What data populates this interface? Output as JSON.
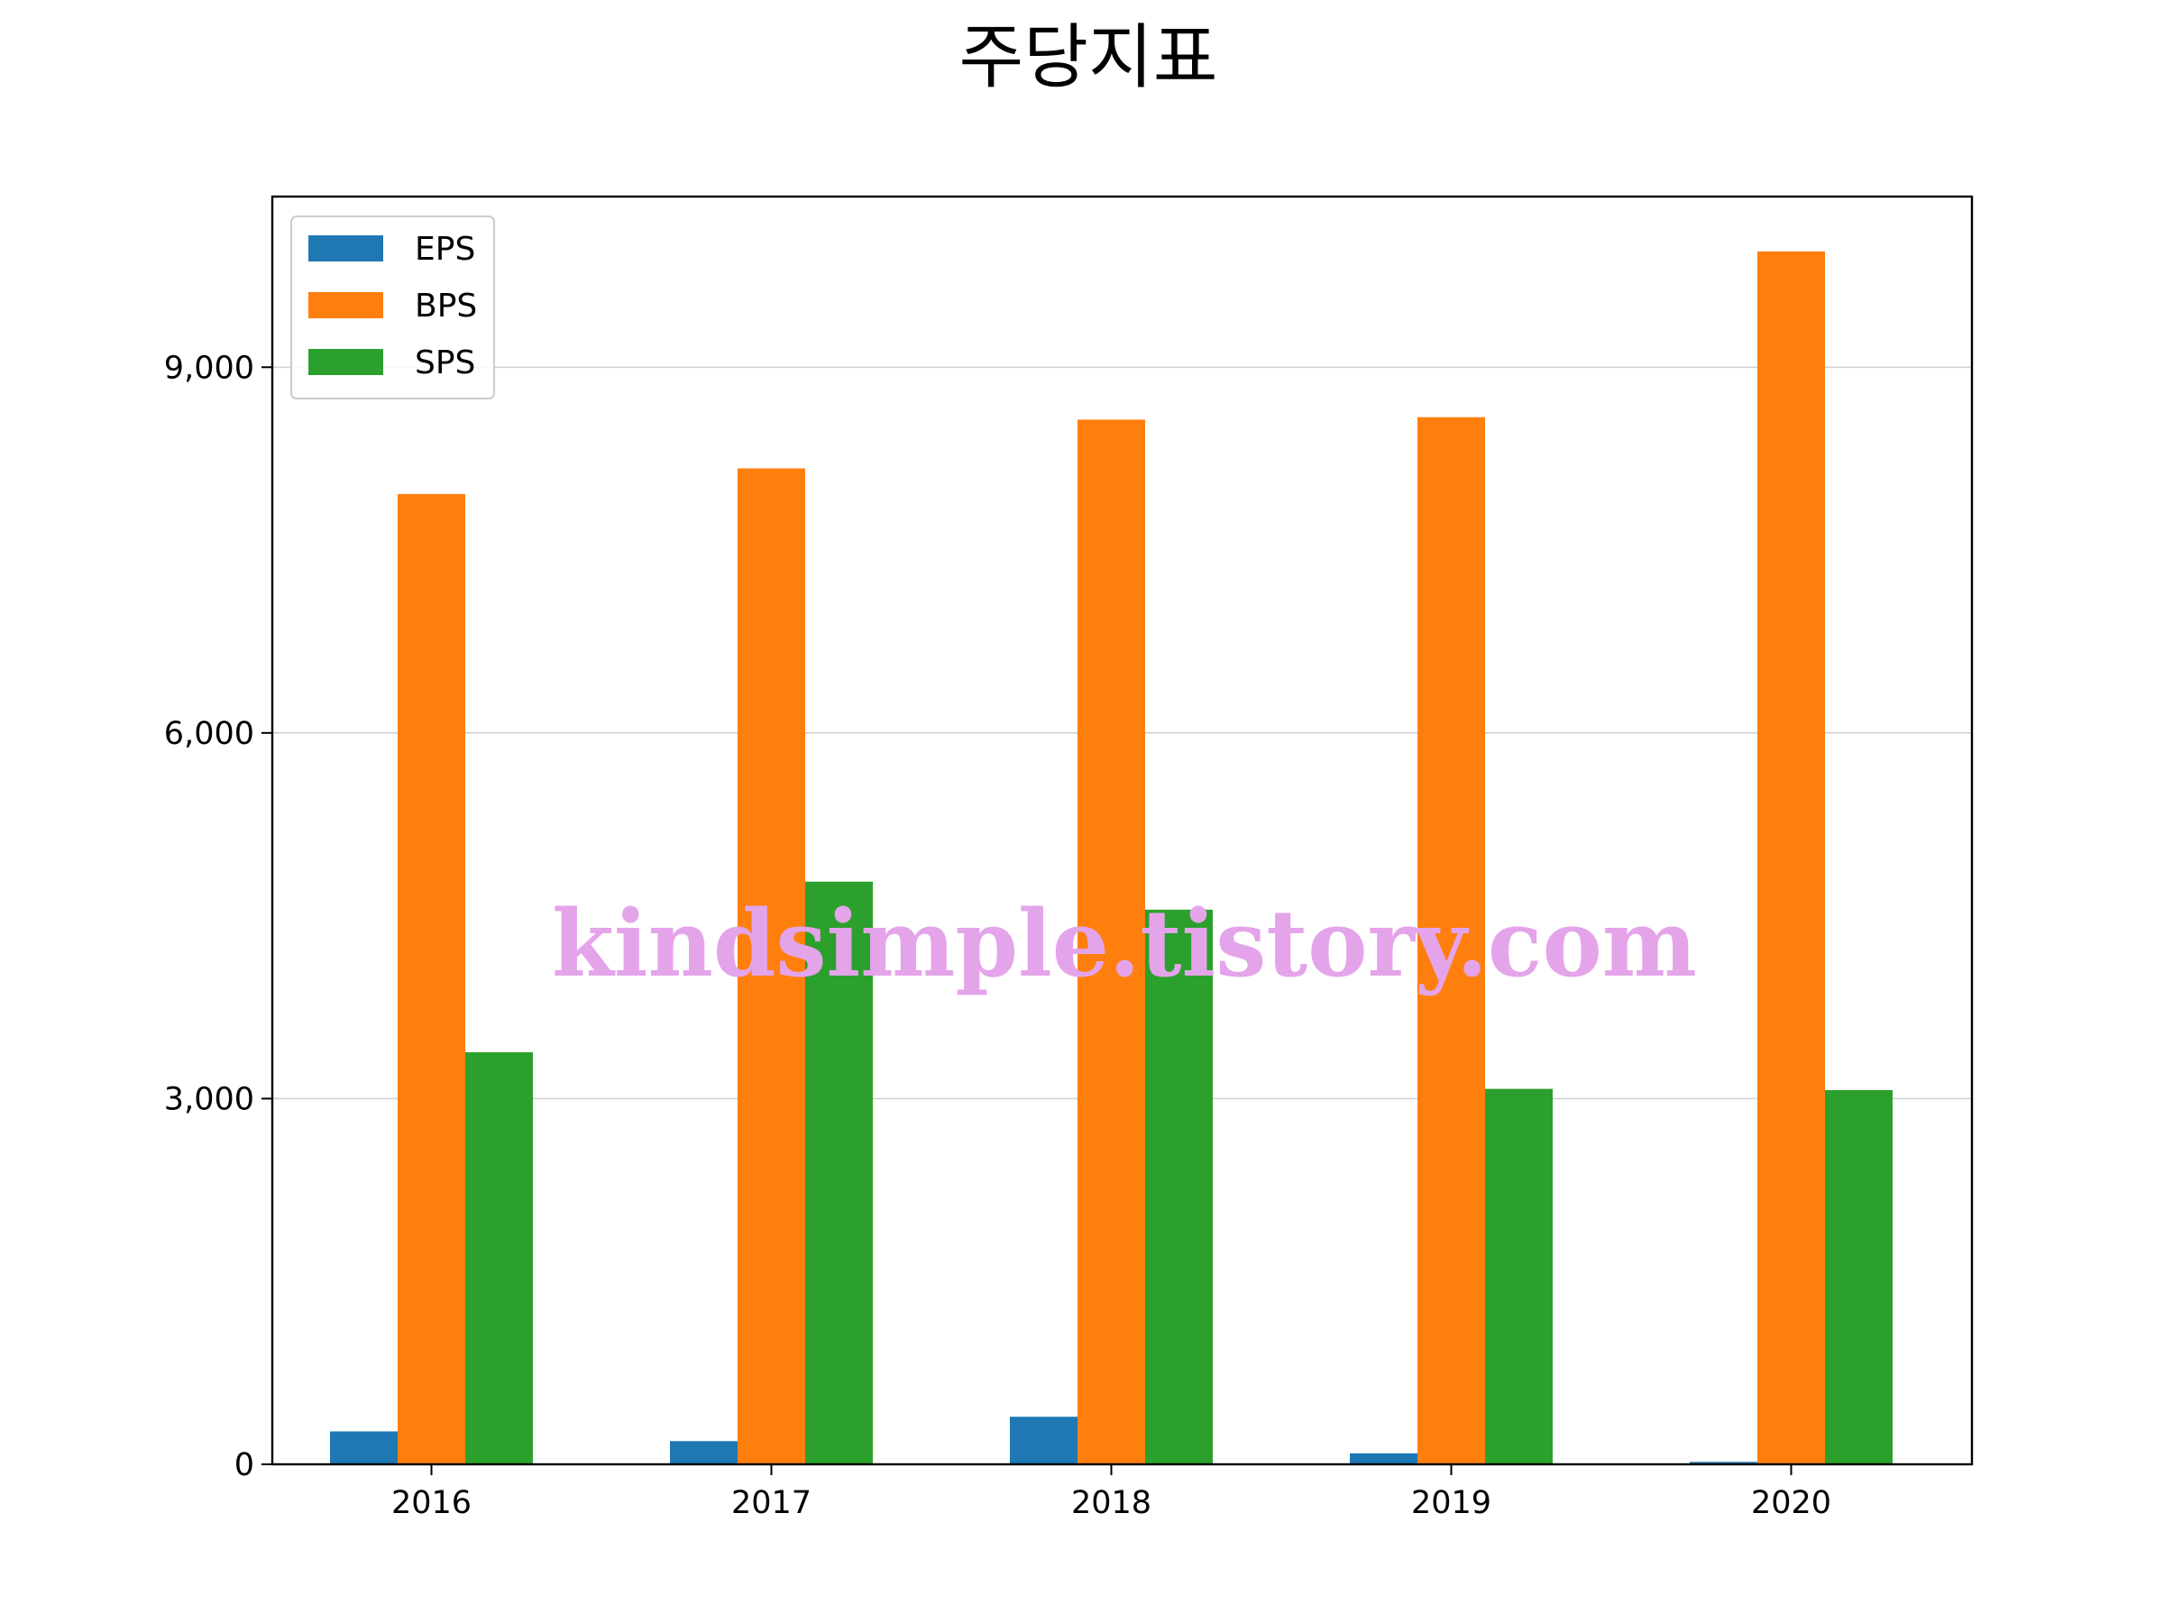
{
  "chart_data": {
    "type": "bar",
    "title": "주당지표",
    "xlabel": "",
    "ylabel": "",
    "categories": [
      "2016",
      "2017",
      "2018",
      "2019",
      "2020"
    ],
    "series": [
      {
        "name": "EPS",
        "color": "#1f77b4",
        "values": [
          270,
          190,
          390,
          90,
          20
        ]
      },
      {
        "name": "BPS",
        "color": "#ff7f0e",
        "values": [
          7960,
          8170,
          8570,
          8590,
          9950
        ]
      },
      {
        "name": "SPS",
        "color": "#2ca02c",
        "values": [
          3380,
          4780,
          4550,
          3080,
          3070
        ]
      }
    ],
    "ylim": [
      0,
      10400
    ],
    "yticks": [
      0,
      3000,
      6000,
      9000
    ],
    "ytick_labels": [
      "0",
      "3,000",
      "6,000",
      "9,000"
    ],
    "grid": "horizontal",
    "legend_position": "top-left",
    "watermark": {
      "text": "kindsimple.tistory.com",
      "color": "#e4a4ea"
    }
  }
}
